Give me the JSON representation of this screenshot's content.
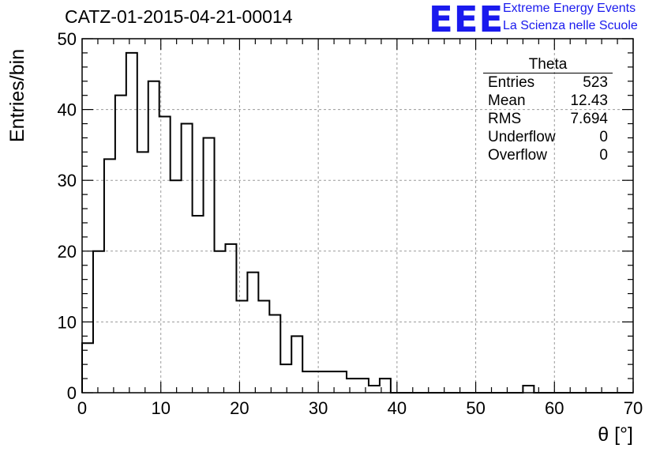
{
  "title": "CATZ-01-2015-04-21-00014",
  "logo": {
    "text": "EEE",
    "line1": "Extreme Energy Events",
    "line2": "La Scienza nelle Scuole",
    "color": "#1a1aee"
  },
  "stats": {
    "name": "Theta",
    "rows": [
      {
        "label": "Entries",
        "value": "523"
      },
      {
        "label": "Mean",
        "value": "12.43"
      },
      {
        "label": "RMS",
        "value": "7.694"
      },
      {
        "label": "Underflow",
        "value": "0"
      },
      {
        "label": "Overflow",
        "value": "0"
      }
    ]
  },
  "chart_data": {
    "type": "histogram",
    "title": "CATZ-01-2015-04-21-00014",
    "xlabel": "θ [°]",
    "ylabel": "Entries/bin",
    "xlim": [
      0,
      70
    ],
    "ylim": [
      0,
      50
    ],
    "bin_width": 1.4,
    "bin_edges_start": 0,
    "values": [
      7,
      20,
      33,
      42,
      48,
      34,
      44,
      39,
      30,
      38,
      25,
      36,
      20,
      21,
      13,
      17,
      13,
      11,
      4,
      8,
      3,
      3,
      3,
      3,
      2,
      2,
      1,
      2,
      0,
      0,
      0,
      0,
      0,
      0,
      0,
      0,
      0,
      0,
      0,
      0,
      1,
      0,
      0,
      0,
      0,
      0,
      0,
      0,
      0,
      0
    ],
    "xticks": [
      0,
      10,
      20,
      30,
      40,
      50,
      60,
      70
    ],
    "yticks": [
      0,
      10,
      20,
      30,
      40,
      50
    ],
    "grid": true,
    "line_color": "#000000"
  }
}
